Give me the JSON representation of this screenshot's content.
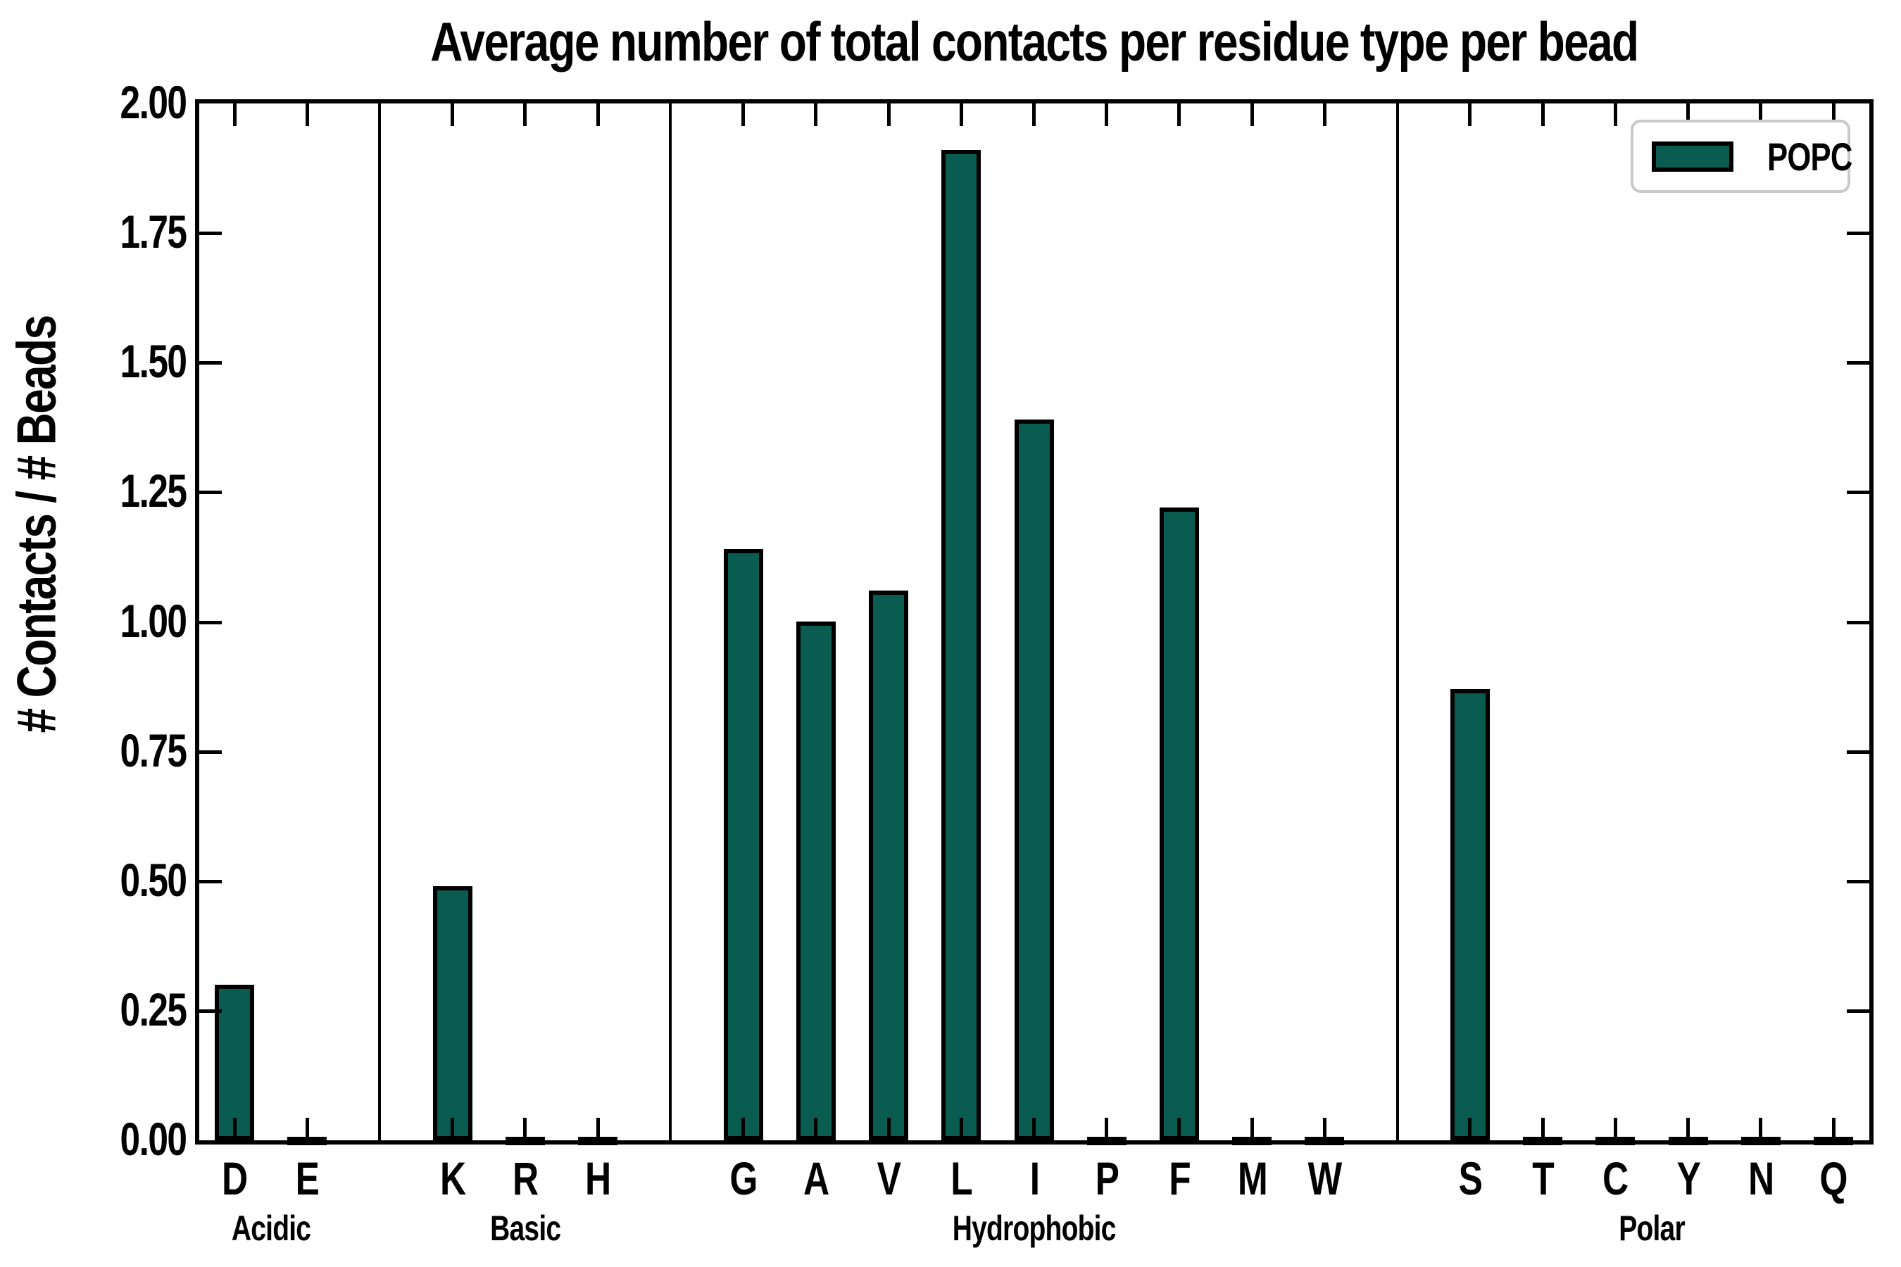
{
  "chart_data": {
    "type": "bar",
    "title": "Average number of total contacts per residue type per bead",
    "ylabel": "# Contacts / # Beads",
    "xlabel": "",
    "ylim": [
      0.0,
      2.0
    ],
    "ytick_labels": [
      "0.00",
      "0.25",
      "0.50",
      "0.75",
      "1.00",
      "1.25",
      "1.50",
      "1.75",
      "2.00"
    ],
    "categories": [
      "D",
      "E",
      "K",
      "R",
      "H",
      "G",
      "A",
      "V",
      "L",
      "I",
      "P",
      "F",
      "M",
      "W",
      "S",
      "T",
      "C",
      "Y",
      "N",
      "Q"
    ],
    "values": [
      0.3,
      0.005,
      0.49,
      0.005,
      0.005,
      1.14,
      1.0,
      1.06,
      1.91,
      1.39,
      0.005,
      1.22,
      0.005,
      0.005,
      0.87,
      0.005,
      0.005,
      0.005,
      0.005,
      0.005
    ],
    "groups": [
      {
        "label": "Acidic",
        "members": [
          "D",
          "E"
        ]
      },
      {
        "label": "Basic",
        "members": [
          "K",
          "R",
          "H"
        ]
      },
      {
        "label": "Hydrophobic",
        "members": [
          "G",
          "A",
          "V",
          "L",
          "I",
          "P",
          "F",
          "M",
          "W"
        ]
      },
      {
        "label": "Polar",
        "members": [
          "S",
          "T",
          "C",
          "Y",
          "N",
          "Q"
        ]
      }
    ],
    "series": [
      {
        "name": "POPC",
        "values": [
          0.3,
          0.005,
          0.49,
          0.005,
          0.005,
          1.14,
          1.0,
          1.06,
          1.91,
          1.39,
          0.005,
          1.22,
          0.005,
          0.005,
          0.87,
          0.005,
          0.005,
          0.005,
          0.005,
          0.005
        ]
      }
    ],
    "legend": {
      "label": "POPC",
      "position": "upper right"
    },
    "grid": false,
    "colors": {
      "bar_fill": "#0A5B50",
      "bar_edge": "#000000",
      "axis": "#000000",
      "legend_border": "#C9C9C9"
    }
  }
}
